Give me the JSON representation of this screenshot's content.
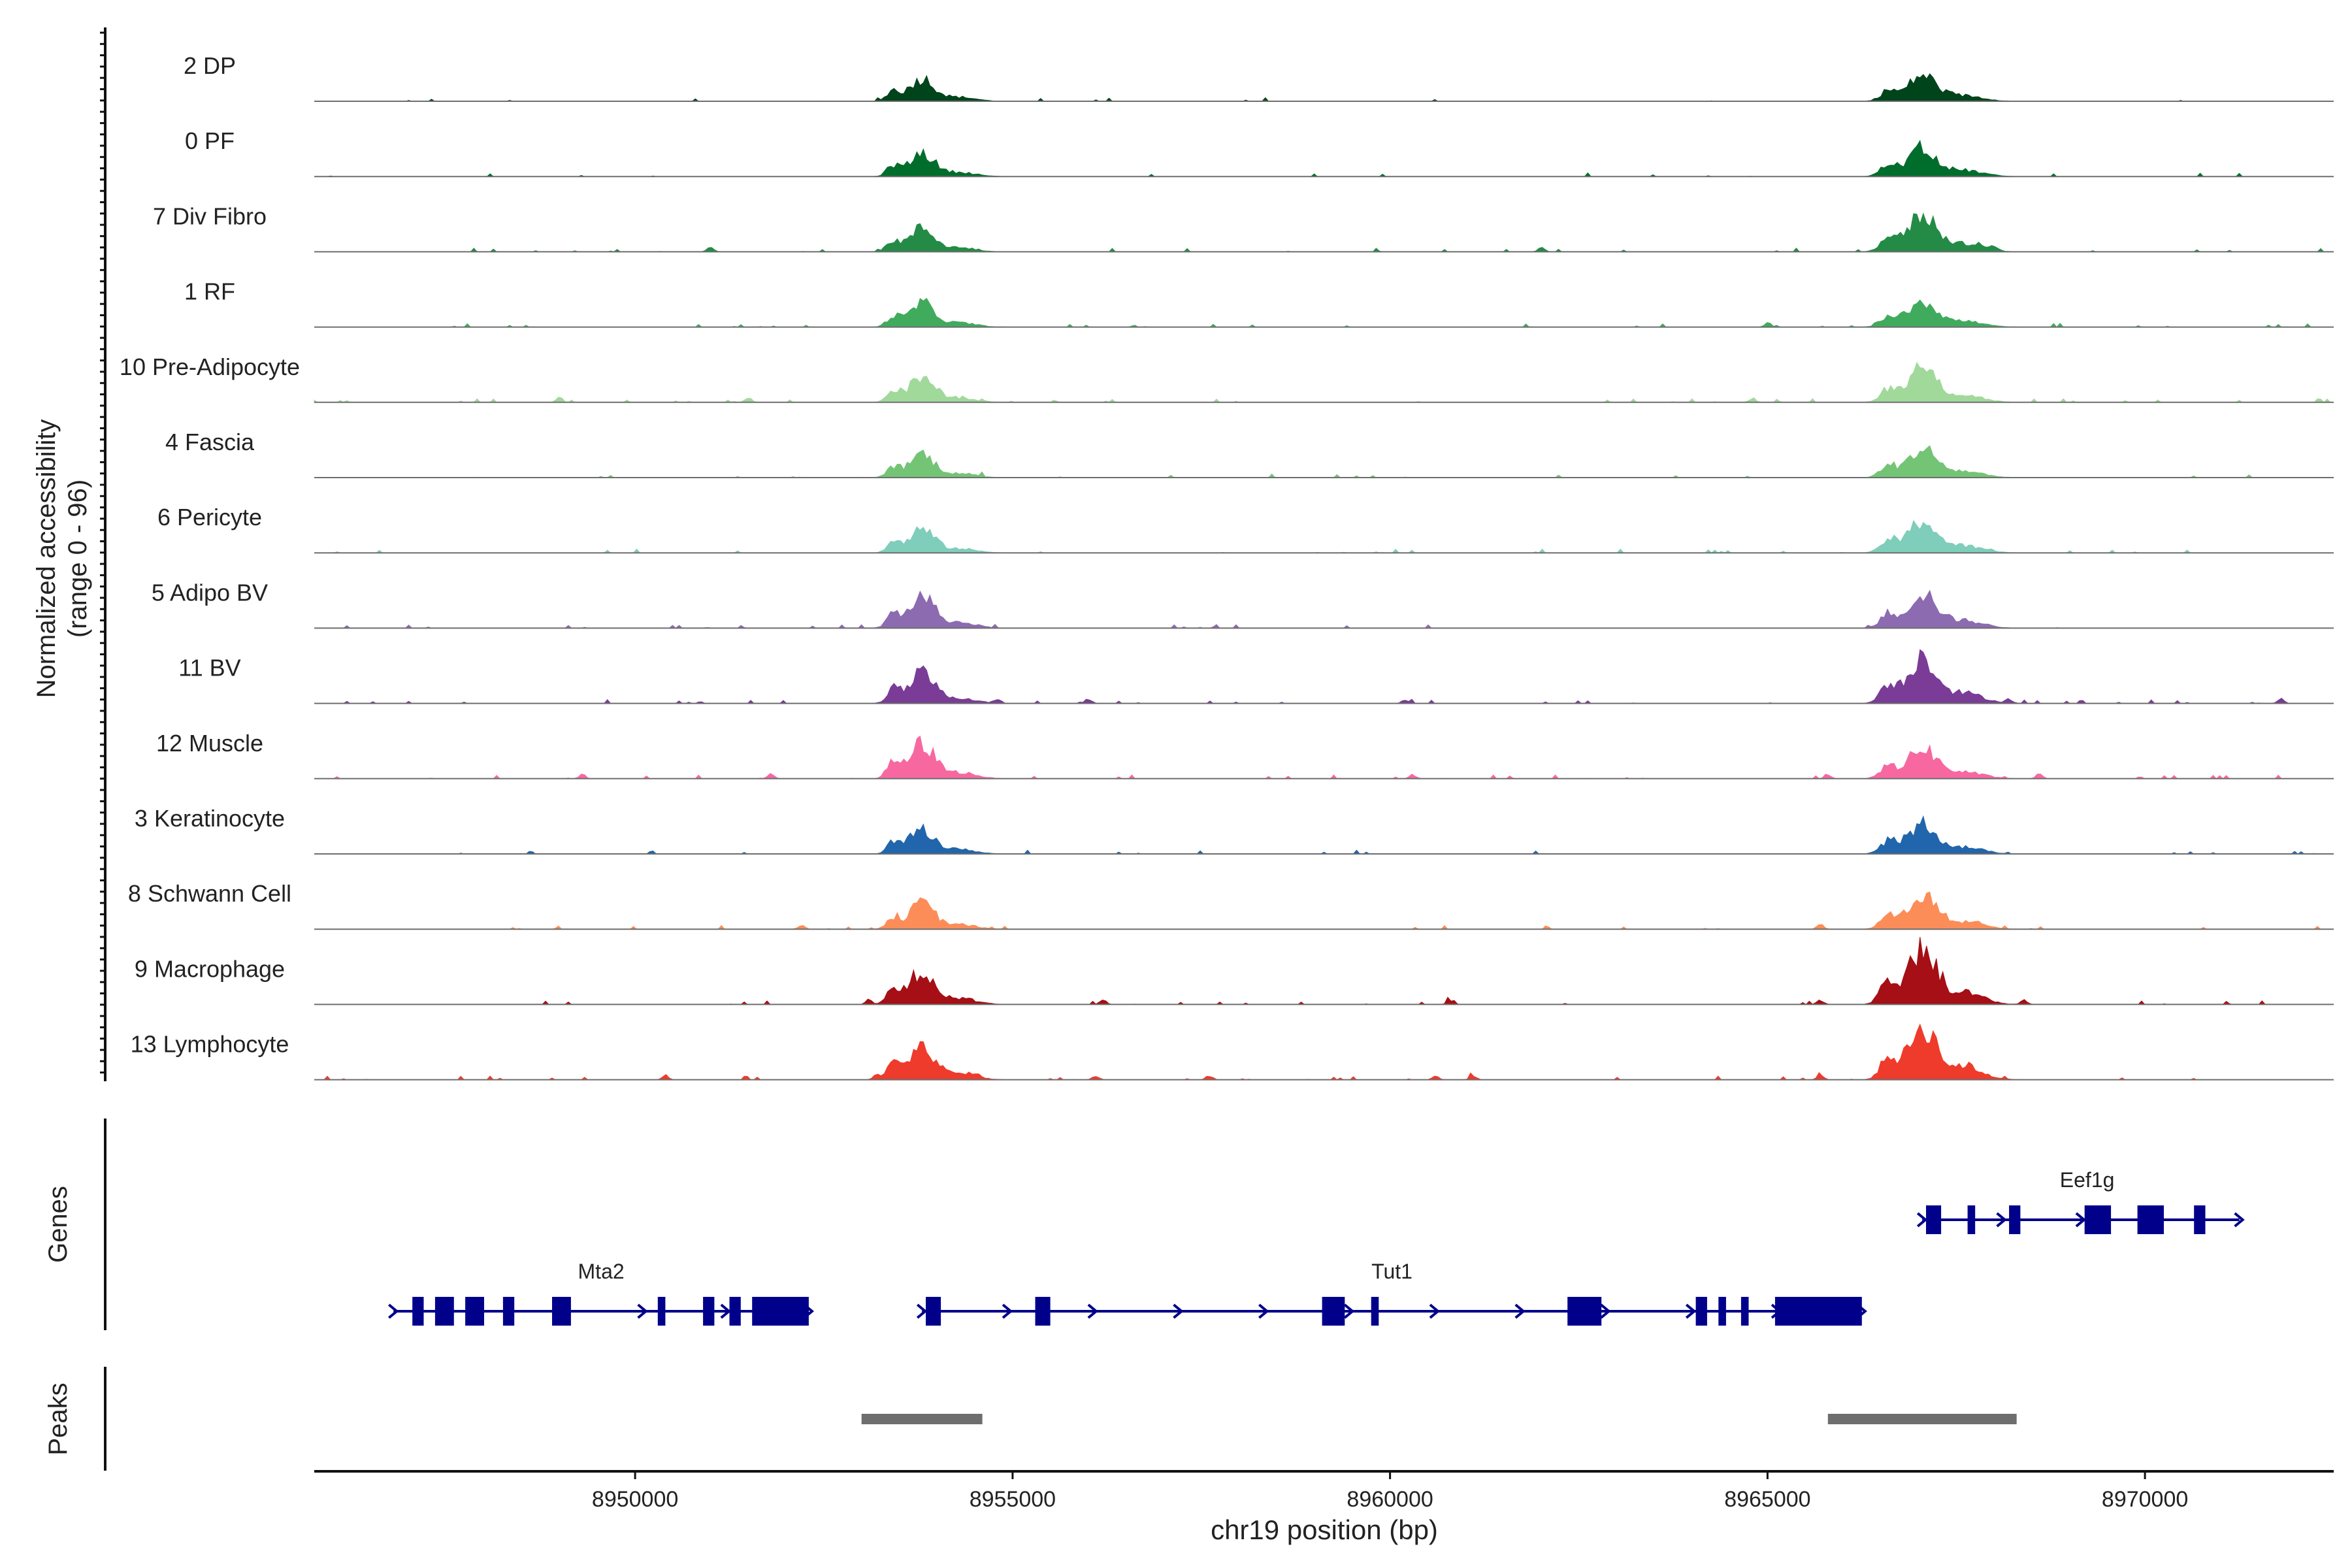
{
  "chart_data": {
    "type": "area",
    "title": "",
    "y_axis_label": "Normalized accessibility",
    "y_axis_range_label": "(range 0 - 96)",
    "ylim": [
      0,
      96
    ],
    "x_axis_label": "chr19 position (bp)",
    "xlim": [
      8945750,
      8972500
    ],
    "x_ticks": [
      8950000,
      8955000,
      8960000,
      8965000,
      8970000
    ],
    "x_tick_labels": [
      "8950000",
      "8955000",
      "8960000",
      "8965000",
      "8970000"
    ],
    "peak_centers": [
      8953800,
      8967050
    ],
    "tracks": [
      {
        "name": "2 DP",
        "color": "#00441b",
        "peak1": 30,
        "peak2": 34,
        "noise": 0.03,
        "scatter": []
      },
      {
        "name": "0 PF",
        "color": "#006d2c",
        "peak1": 31,
        "peak2": 37,
        "noise": 0.03,
        "scatter": []
      },
      {
        "name": "7 Div Fibro",
        "color": "#238b45",
        "peak1": 31,
        "peak2": 49,
        "noise": 0.06,
        "scatter": [
          8951000,
          8962000,
          8968000
        ]
      },
      {
        "name": "1 RF",
        "color": "#41ab5d",
        "peak1": 31,
        "peak2": 35,
        "noise": 0.04,
        "scatter": [
          8965000
        ]
      },
      {
        "name": "10 Pre-Adipocyte",
        "color": "#a1d99b",
        "peak1": 34,
        "peak2": 44,
        "noise": 0.06,
        "scatter": [
          8949000,
          8951500,
          8964800
        ]
      },
      {
        "name": "4 Fascia",
        "color": "#74c476",
        "peak1": 31,
        "peak2": 38,
        "noise": 0.04,
        "scatter": []
      },
      {
        "name": "6 Pericyte",
        "color": "#7fcdbb",
        "peak1": 31,
        "peak2": 42,
        "noise": 0.04,
        "scatter": []
      },
      {
        "name": "5 Adipo BV",
        "color": "#8c6bb1",
        "peak1": 42,
        "peak2": 46,
        "noise": 0.04,
        "scatter": []
      },
      {
        "name": "11 BV",
        "color": "#7a3c96",
        "peak1": 40,
        "peak2": 62,
        "noise": 0.05,
        "scatter": [
          8954800,
          8956000,
          8960200,
          8968200,
          8971800
        ]
      },
      {
        "name": "12 Muscle",
        "color": "#f768a1",
        "peak1": 46,
        "peak2": 40,
        "noise": 0.05,
        "scatter": [
          8949300,
          8951800,
          8960300,
          8965800,
          8968600
        ]
      },
      {
        "name": "3 Keratinocyte",
        "color": "#2166ac",
        "peak1": 33,
        "peak2": 40,
        "noise": 0.04,
        "scatter": []
      },
      {
        "name": "8 Schwann Cell",
        "color": "#fc8d59",
        "peak1": 34,
        "peak2": 44,
        "noise": 0.05,
        "scatter": [
          8952200,
          8965700
        ]
      },
      {
        "name": "9 Macrophage",
        "color": "#a50f15",
        "peak1": 45,
        "peak2": 72,
        "noise": 0.05,
        "scatter": [
          8953100,
          8956200,
          8960800,
          8965700,
          8968400
        ]
      },
      {
        "name": "13 Lymphocyte",
        "color": "#ef3b2c",
        "peak1": 45,
        "peak2": 70,
        "noise": 0.05,
        "scatter": [
          8950400,
          8953200,
          8954500,
          8956100,
          8957600,
          8960600,
          8961100,
          8965700,
          8967700
        ]
      }
    ],
    "genes": {
      "label": "Genes",
      "color": "#00008b",
      "items": [
        {
          "name": "Mta2",
          "start": 8946800,
          "end": 8952300,
          "strand": "+",
          "row": 2,
          "exons": [
            [
              8947050,
              8947200
            ],
            [
              8947350,
              8947600
            ],
            [
              8947750,
              8948000
            ],
            [
              8948250,
              8948400
            ],
            [
              8948900,
              8949150
            ],
            [
              8950300,
              8950400
            ],
            [
              8950900,
              8951050
            ],
            [
              8951250,
              8951400
            ],
            [
              8951550,
              8952300
            ]
          ]
        },
        {
          "name": "Tut1",
          "start": 8953800,
          "end": 8966250,
          "strand": "+",
          "row": 2,
          "exons": [
            [
              8953850,
              8954050
            ],
            [
              8955300,
              8955500
            ],
            [
              8959100,
              8959400
            ],
            [
              8959750,
              8959850
            ],
            [
              8962350,
              8962800
            ],
            [
              8964050,
              8964200
            ],
            [
              8964350,
              8964450
            ],
            [
              8964650,
              8964750
            ],
            [
              8965100,
              8966250
            ]
          ]
        },
        {
          "name": "Eef1g",
          "start": 8967050,
          "end": 8971250,
          "strand": "+",
          "row": 1,
          "exons": [
            [
              8967100,
              8967300
            ],
            [
              8967650,
              8967750
            ],
            [
              8968200,
              8968350
            ],
            [
              8969200,
              8969550
            ],
            [
              8969900,
              8970250
            ],
            [
              8970650,
              8970800
            ]
          ]
        }
      ]
    },
    "peaks": {
      "label": "Peaks",
      "color": "#6e6e6e",
      "regions": [
        [
          8953000,
          8954600
        ],
        [
          8965800,
          8968300
        ]
      ]
    }
  }
}
